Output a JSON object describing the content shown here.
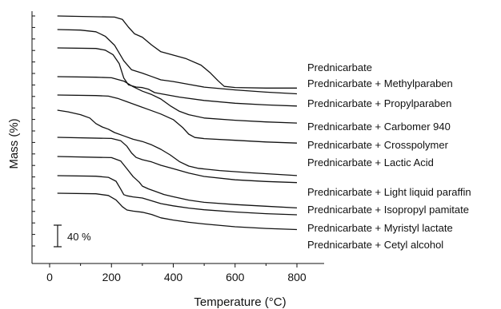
{
  "chart_data": {
    "type": "line",
    "xlabel": "Temperature (°C)",
    "ylabel": "Mass (%)",
    "xlim": [
      -60,
      1015
    ],
    "x_ticks": [
      0,
      200,
      400,
      600,
      800
    ],
    "scale_bar_label": "40 %",
    "y_axis_tick_labels": "none",
    "grid": false,
    "legend": "labels at right end of each curve",
    "line_color": "#111111",
    "series": [
      {
        "name": "Prednicarbate",
        "points": [
          [
            25,
            100
          ],
          [
            210,
            99
          ],
          [
            235,
            97
          ],
          [
            255,
            90
          ],
          [
            275,
            84
          ],
          [
            300,
            81
          ],
          [
            330,
            74
          ],
          [
            360,
            68
          ],
          [
            400,
            65
          ],
          [
            440,
            62
          ],
          [
            490,
            56
          ],
          [
            520,
            49
          ],
          [
            545,
            42
          ],
          [
            565,
            37
          ],
          [
            600,
            36
          ],
          [
            700,
            35.5
          ],
          [
            800,
            35.5
          ]
        ]
      },
      {
        "name": "Prednicarbate + Methylparaben",
        "points": [
          [
            25,
            100
          ],
          [
            100,
            99.5
          ],
          [
            150,
            98
          ],
          [
            180,
            94
          ],
          [
            210,
            86
          ],
          [
            240,
            72
          ],
          [
            265,
            64
          ],
          [
            300,
            61
          ],
          [
            330,
            58
          ],
          [
            360,
            55
          ],
          [
            400,
            53.5
          ],
          [
            450,
            51
          ],
          [
            500,
            48.5
          ],
          [
            600,
            46
          ],
          [
            700,
            44
          ],
          [
            800,
            42.5
          ]
        ]
      },
      {
        "name": "Prednicarbate + Propylparaben",
        "points": [
          [
            25,
            100
          ],
          [
            150,
            99.5
          ],
          [
            180,
            98
          ],
          [
            205,
            94
          ],
          [
            225,
            86
          ],
          [
            240,
            73
          ],
          [
            255,
            67
          ],
          [
            280,
            65
          ],
          [
            300,
            64.5
          ],
          [
            320,
            63
          ],
          [
            340,
            60
          ],
          [
            370,
            58.5
          ],
          [
            420,
            56
          ],
          [
            500,
            53
          ],
          [
            600,
            50.5
          ],
          [
            700,
            49
          ],
          [
            800,
            48
          ]
        ]
      },
      {
        "name": "Prednicarbate + Carbomer 940",
        "points": [
          [
            25,
            100
          ],
          [
            150,
            99.5
          ],
          [
            200,
            99
          ],
          [
            240,
            96
          ],
          [
            270,
            91
          ],
          [
            300,
            87
          ],
          [
            330,
            84
          ],
          [
            360,
            80
          ],
          [
            390,
            74
          ],
          [
            420,
            69
          ],
          [
            450,
            66
          ],
          [
            500,
            63
          ],
          [
            600,
            61
          ],
          [
            700,
            59.5
          ],
          [
            800,
            58.5
          ]
        ]
      },
      {
        "name": "Prednicarbate + Crosspolymer",
        "points": [
          [
            25,
            100
          ],
          [
            150,
            99.5
          ],
          [
            190,
            99
          ],
          [
            220,
            97
          ],
          [
            250,
            94
          ],
          [
            290,
            90
          ],
          [
            320,
            87
          ],
          [
            360,
            83
          ],
          [
            400,
            78
          ],
          [
            430,
            71
          ],
          [
            450,
            65
          ],
          [
            470,
            62
          ],
          [
            500,
            61
          ],
          [
            600,
            59.5
          ],
          [
            700,
            58
          ],
          [
            800,
            57
          ]
        ]
      },
      {
        "name": "Prednicarbate + Lactic Acid",
        "points": [
          [
            25,
            100
          ],
          [
            60,
            98.5
          ],
          [
            100,
            96
          ],
          [
            130,
            93
          ],
          [
            150,
            88
          ],
          [
            170,
            85
          ],
          [
            190,
            83
          ],
          [
            210,
            80
          ],
          [
            240,
            77
          ],
          [
            270,
            74
          ],
          [
            300,
            72
          ],
          [
            330,
            69
          ],
          [
            360,
            65
          ],
          [
            390,
            60
          ],
          [
            420,
            54
          ],
          [
            450,
            50
          ],
          [
            480,
            48
          ],
          [
            550,
            46
          ],
          [
            650,
            44
          ],
          [
            800,
            41.5
          ]
        ]
      },
      {
        "name": "Prednicarbate + Light liquid paraffin",
        "points": [
          [
            25,
            100
          ],
          [
            200,
            99
          ],
          [
            230,
            97
          ],
          [
            250,
            92
          ],
          [
            265,
            86
          ],
          [
            280,
            82
          ],
          [
            300,
            80
          ],
          [
            330,
            78
          ],
          [
            360,
            75
          ],
          [
            400,
            72
          ],
          [
            450,
            68
          ],
          [
            500,
            65
          ],
          [
            600,
            62
          ],
          [
            700,
            60.5
          ],
          [
            800,
            59.5
          ]
        ]
      },
      {
        "name": "Prednicarbate + Isopropyl pamitate",
        "points": [
          [
            25,
            100
          ],
          [
            200,
            99
          ],
          [
            230,
            96
          ],
          [
            250,
            89
          ],
          [
            270,
            82
          ],
          [
            290,
            77
          ],
          [
            300,
            73.5
          ],
          [
            320,
            71
          ],
          [
            340,
            69
          ],
          [
            370,
            66
          ],
          [
            400,
            64
          ],
          [
            450,
            61
          ],
          [
            500,
            59
          ],
          [
            600,
            57
          ],
          [
            700,
            55.5
          ],
          [
            800,
            54
          ]
        ]
      },
      {
        "name": "Prednicarbate + Myristyl lactate",
        "points": [
          [
            25,
            100
          ],
          [
            150,
            99.5
          ],
          [
            190,
            98.5
          ],
          [
            215,
            95
          ],
          [
            230,
            88
          ],
          [
            240,
            83
          ],
          [
            250,
            82
          ],
          [
            270,
            81
          ],
          [
            300,
            80
          ],
          [
            330,
            77.5
          ],
          [
            360,
            75
          ],
          [
            400,
            73
          ],
          [
            450,
            71
          ],
          [
            500,
            69.5
          ],
          [
            600,
            67.5
          ],
          [
            700,
            66
          ],
          [
            800,
            65
          ]
        ]
      },
      {
        "name": "Prednicarbate + Cetyl alcohol",
        "points": [
          [
            25,
            100
          ],
          [
            150,
            99.5
          ],
          [
            190,
            98
          ],
          [
            215,
            94
          ],
          [
            235,
            88
          ],
          [
            250,
            85
          ],
          [
            270,
            84
          ],
          [
            300,
            83
          ],
          [
            330,
            81
          ],
          [
            360,
            78
          ],
          [
            400,
            76
          ],
          [
            450,
            74
          ],
          [
            500,
            72.5
          ],
          [
            600,
            70
          ],
          [
            700,
            68.5
          ],
          [
            800,
            67.5
          ]
        ]
      }
    ]
  }
}
